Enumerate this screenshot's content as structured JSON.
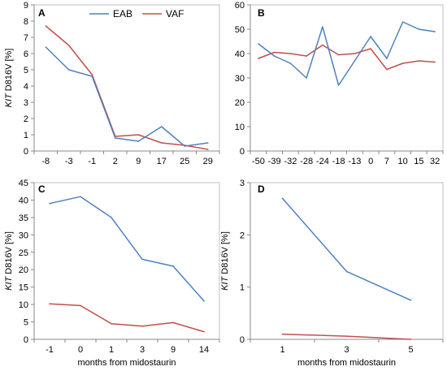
{
  "legend": [
    {
      "name": "EAB",
      "color": "#4f81bd"
    },
    {
      "name": "VAF",
      "color": "#c0504d"
    }
  ],
  "chart_data": [
    {
      "panel": "A",
      "type": "line",
      "categories": [
        "-8",
        "-3",
        "-1",
        "2",
        "9",
        "17",
        "25",
        "29"
      ],
      "series": [
        {
          "name": "EAB",
          "color": "#4f81bd",
          "values": [
            6.4,
            5.0,
            4.6,
            0.8,
            0.6,
            1.5,
            0.3,
            0.5
          ]
        },
        {
          "name": "VAF",
          "color": "#c0504d",
          "values": [
            7.7,
            6.5,
            4.7,
            0.9,
            1.0,
            0.5,
            0.35,
            0.1
          ]
        }
      ],
      "ylabel": {
        "gene": "KIT",
        "rest": " D816V  [%]"
      },
      "xlabel": "",
      "ylim": [
        0,
        9
      ],
      "yticks": [
        0,
        1,
        2,
        3,
        4,
        5,
        6,
        7,
        8,
        9
      ]
    },
    {
      "panel": "B",
      "type": "line",
      "categories": [
        "-50",
        "-39",
        "-32",
        "-28",
        "-24",
        "-18",
        "-13",
        "0",
        "7",
        "10",
        "15",
        "32"
      ],
      "series": [
        {
          "name": "EAB",
          "color": "#4f81bd",
          "values": [
            44,
            39,
            36,
            30,
            51,
            27,
            37,
            47,
            38,
            53,
            50,
            49
          ]
        },
        {
          "name": "VAF",
          "color": "#c0504d",
          "values": [
            38,
            40.5,
            40,
            39,
            43.5,
            39.5,
            40,
            42,
            33.5,
            36,
            37,
            36.5
          ]
        }
      ],
      "ylabel": null,
      "xlabel": "",
      "ylim": [
        0,
        60
      ],
      "yticks": [
        0,
        10,
        20,
        30,
        40,
        50,
        60
      ]
    },
    {
      "panel": "C",
      "type": "line",
      "categories": [
        "-1",
        "0",
        "1",
        "3",
        "9",
        "14"
      ],
      "series": [
        {
          "name": "EAB",
          "color": "#4f81bd",
          "values": [
            39,
            41,
            35,
            23,
            21,
            11
          ]
        },
        {
          "name": "VAF",
          "color": "#c0504d",
          "values": [
            10.2,
            9.7,
            4.5,
            3.8,
            4.8,
            2.2
          ]
        }
      ],
      "ylabel": {
        "gene": "KIT",
        "rest": " D816V [%]"
      },
      "xlabel": "months from midostaurin",
      "ylim": [
        0,
        45
      ],
      "yticks": [
        0,
        5,
        10,
        15,
        20,
        25,
        30,
        35,
        40,
        45
      ]
    },
    {
      "panel": "D",
      "type": "line",
      "categories": [
        "1",
        "3",
        "5"
      ],
      "series": [
        {
          "name": "EAB",
          "color": "#4f81bd",
          "values": [
            2.7,
            1.3,
            0.75
          ]
        },
        {
          "name": "VAF",
          "color": "#c0504d",
          "values": [
            0.1,
            0.06,
            0.0
          ]
        }
      ],
      "ylabel": {
        "gene": "KIT",
        "rest": " D816V [%]"
      },
      "xlabel": "months from midostaurin",
      "ylim": [
        0,
        3
      ],
      "yticks": [
        0,
        1,
        2,
        3
      ]
    }
  ]
}
